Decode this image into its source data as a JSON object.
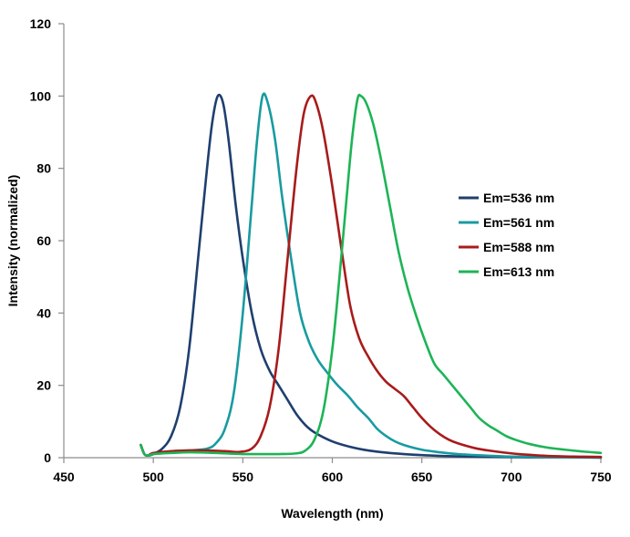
{
  "chart_data": {
    "type": "line",
    "title": "",
    "xlabel": "Wavelength (nm)",
    "ylabel": "Intensity (normalized)",
    "xlim": [
      450,
      750
    ],
    "ylim": [
      0,
      120
    ],
    "xticks": [
      450,
      500,
      550,
      600,
      650,
      700,
      750
    ],
    "yticks": [
      0,
      20,
      40,
      60,
      80,
      100,
      120
    ],
    "grid": false,
    "legend_position": "right",
    "series": [
      {
        "name": "Em=536 nm",
        "color": "#1f3f6e",
        "points": [
          [
            493,
            3.5
          ],
          [
            495,
            1
          ],
          [
            497,
            0.6
          ],
          [
            500,
            1
          ],
          [
            505,
            2.5
          ],
          [
            510,
            6
          ],
          [
            515,
            14
          ],
          [
            520,
            30
          ],
          [
            525,
            55
          ],
          [
            530,
            80
          ],
          [
            533,
            93
          ],
          [
            536,
            100
          ],
          [
            539,
            98
          ],
          [
            542,
            88
          ],
          [
            546,
            70
          ],
          [
            550,
            55
          ],
          [
            555,
            40
          ],
          [
            560,
            30
          ],
          [
            565,
            24
          ],
          [
            570,
            20
          ],
          [
            575,
            16
          ],
          [
            580,
            12
          ],
          [
            585,
            9
          ],
          [
            590,
            7
          ],
          [
            600,
            4.5
          ],
          [
            610,
            3
          ],
          [
            620,
            2
          ],
          [
            630,
            1.4
          ],
          [
            640,
            1
          ],
          [
            650,
            0.7
          ],
          [
            660,
            0.5
          ],
          [
            675,
            0.3
          ],
          [
            690,
            0.2
          ],
          [
            710,
            0.1
          ],
          [
            730,
            0.1
          ],
          [
            750,
            0
          ]
        ]
      },
      {
        "name": "Em=561 nm",
        "color": "#189ba0",
        "points": [
          [
            493,
            3.5
          ],
          [
            495,
            1
          ],
          [
            497,
            0.6
          ],
          [
            500,
            1
          ],
          [
            505,
            1.5
          ],
          [
            510,
            1.8
          ],
          [
            520,
            2
          ],
          [
            530,
            2.5
          ],
          [
            535,
            4
          ],
          [
            540,
            8
          ],
          [
            545,
            18
          ],
          [
            550,
            40
          ],
          [
            555,
            70
          ],
          [
            558,
            88
          ],
          [
            561,
            100
          ],
          [
            564,
            98
          ],
          [
            568,
            88
          ],
          [
            572,
            72
          ],
          [
            577,
            55
          ],
          [
            582,
            40
          ],
          [
            587,
            32
          ],
          [
            592,
            27
          ],
          [
            598,
            23
          ],
          [
            603,
            20
          ],
          [
            609,
            17
          ],
          [
            614,
            14
          ],
          [
            620,
            11
          ],
          [
            625,
            8
          ],
          [
            630,
            6
          ],
          [
            635,
            4.5
          ],
          [
            640,
            3.5
          ],
          [
            650,
            2.2
          ],
          [
            660,
            1.5
          ],
          [
            670,
            1
          ],
          [
            680,
            0.7
          ],
          [
            690,
            0.5
          ],
          [
            700,
            0.3
          ],
          [
            720,
            0.2
          ],
          [
            750,
            0.1
          ]
        ]
      },
      {
        "name": "Em=588 nm",
        "color": "#a81b1b",
        "points": [
          [
            493,
            3.5
          ],
          [
            495,
            1
          ],
          [
            497,
            0.6
          ],
          [
            500,
            1.3
          ],
          [
            510,
            1.8
          ],
          [
            520,
            2
          ],
          [
            530,
            2
          ],
          [
            540,
            1.8
          ],
          [
            548,
            1.6
          ],
          [
            555,
            2.5
          ],
          [
            560,
            6
          ],
          [
            565,
            14
          ],
          [
            570,
            30
          ],
          [
            575,
            55
          ],
          [
            580,
            80
          ],
          [
            584,
            95
          ],
          [
            588,
            100
          ],
          [
            591,
            98
          ],
          [
            595,
            90
          ],
          [
            600,
            75
          ],
          [
            605,
            58
          ],
          [
            610,
            42
          ],
          [
            615,
            33
          ],
          [
            620,
            28
          ],
          [
            625,
            24
          ],
          [
            630,
            21
          ],
          [
            635,
            19
          ],
          [
            640,
            17
          ],
          [
            645,
            14
          ],
          [
            650,
            11
          ],
          [
            655,
            8.5
          ],
          [
            660,
            6.5
          ],
          [
            665,
            5
          ],
          [
            670,
            4
          ],
          [
            680,
            2.6
          ],
          [
            690,
            1.8
          ],
          [
            700,
            1.2
          ],
          [
            710,
            0.8
          ],
          [
            720,
            0.5
          ],
          [
            735,
            0.3
          ],
          [
            750,
            0.2
          ]
        ]
      },
      {
        "name": "Em=613 nm",
        "color": "#1db456",
        "points": [
          [
            493,
            3.5
          ],
          [
            495,
            1
          ],
          [
            497,
            0.6
          ],
          [
            500,
            1
          ],
          [
            510,
            1.3
          ],
          [
            520,
            1.5
          ],
          [
            530,
            1.4
          ],
          [
            540,
            1.2
          ],
          [
            550,
            1
          ],
          [
            560,
            1
          ],
          [
            570,
            1
          ],
          [
            580,
            1.2
          ],
          [
            585,
            2
          ],
          [
            590,
            5
          ],
          [
            595,
            13
          ],
          [
            600,
            30
          ],
          [
            604,
            50
          ],
          [
            608,
            72
          ],
          [
            611,
            88
          ],
          [
            614,
            99
          ],
          [
            616,
            100
          ],
          [
            619,
            98
          ],
          [
            623,
            92
          ],
          [
            627,
            83
          ],
          [
            632,
            70
          ],
          [
            637,
            57
          ],
          [
            642,
            47
          ],
          [
            647,
            39
          ],
          [
            652,
            32
          ],
          [
            657,
            26
          ],
          [
            662,
            23
          ],
          [
            667,
            20
          ],
          [
            672,
            17
          ],
          [
            677,
            14
          ],
          [
            682,
            11
          ],
          [
            687,
            9
          ],
          [
            692,
            7.5
          ],
          [
            697,
            6
          ],
          [
            702,
            5
          ],
          [
            710,
            3.8
          ],
          [
            720,
            2.8
          ],
          [
            730,
            2.2
          ],
          [
            740,
            1.7
          ],
          [
            750,
            1.3
          ]
        ]
      }
    ]
  }
}
